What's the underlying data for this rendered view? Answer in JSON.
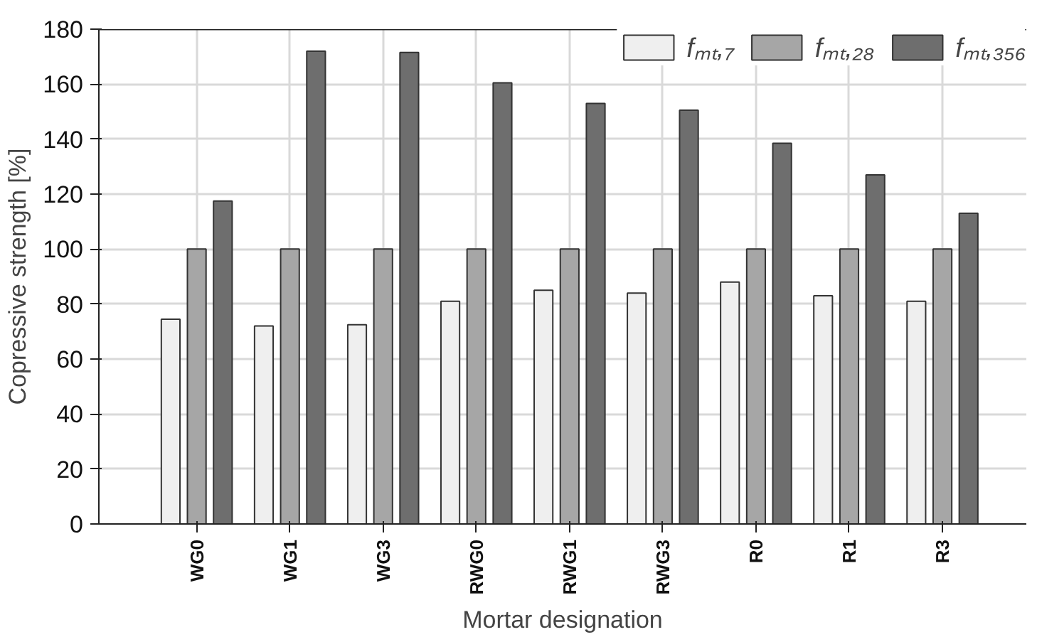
{
  "chart_data": {
    "type": "bar",
    "xlabel": "Mortar designation",
    "ylabel": "Copressive strength [%]",
    "categories": [
      "WG0",
      "WG1",
      "WG3",
      "RWG0",
      "RWG1",
      "RWG3",
      "R0",
      "R1",
      "R3"
    ],
    "series": [
      {
        "name": "fₘₜ,₇",
        "color": "#efefef",
        "values": [
          74.5,
          72,
          72.5,
          81,
          85,
          84,
          88,
          83,
          81
        ]
      },
      {
        "name": "fₘₜ,₂₈",
        "color": "#a6a6a6",
        "values": [
          100,
          100,
          100,
          100,
          100,
          100,
          100,
          100,
          100
        ]
      },
      {
        "name": "fₘₜ,₃₅₆",
        "color": "#6e6e6e",
        "values": [
          117.5,
          172,
          171.5,
          160.5,
          153,
          150.5,
          138.5,
          127,
          113
        ]
      }
    ],
    "ylim": [
      0,
      180
    ],
    "yticks": [
      0,
      20,
      40,
      60,
      80,
      100,
      120,
      140,
      160,
      180
    ],
    "grid": true,
    "legend": "top right"
  }
}
